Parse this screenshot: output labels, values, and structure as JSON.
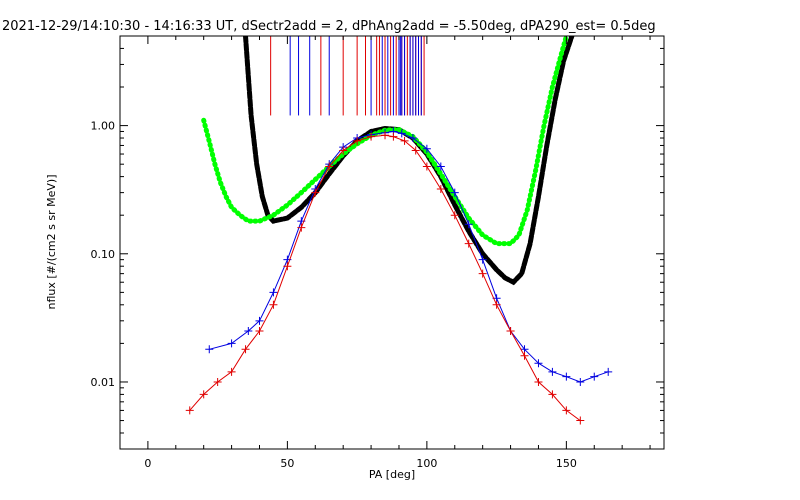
{
  "chart_data": {
    "type": "scatter",
    "title": "2021-12-29/14:10:30 - 14:16:33 UT, dSectr2add = 2, dPhAng2add = -5.50deg, dPA290_est=   0.5deg",
    "xlabel": "PA [deg]",
    "ylabel": "nflux [#/(cm2 s sr MeV)]",
    "xlim": [
      -10,
      185
    ],
    "ylim": [
      0.003,
      5
    ],
    "yscale": "log",
    "xticks": [
      0,
      50,
      100,
      150
    ],
    "xtick_labels": [
      "0",
      "50",
      "100",
      "150"
    ],
    "yticks": [
      0.01,
      0.1,
      1.0
    ],
    "ytick_labels": [
      "0.01",
      "0.10",
      "1.00"
    ],
    "grid": false,
    "colors": {
      "red": "#e00000",
      "blue": "#0000e0",
      "black": "#000000",
      "green": "#00ff00"
    },
    "series": [
      {
        "color": "black",
        "style": "thick-dashed",
        "x": [
          35,
          37,
          39,
          41,
          43,
          45,
          50,
          55,
          60,
          65,
          70,
          75,
          80,
          85,
          90,
          95,
          100,
          105,
          110,
          115,
          120,
          125,
          128,
          131,
          134,
          137,
          140,
          143,
          146,
          149,
          152
        ],
        "y": [
          5,
          1.2,
          0.5,
          0.28,
          0.2,
          0.18,
          0.19,
          0.23,
          0.3,
          0.42,
          0.58,
          0.76,
          0.9,
          0.95,
          0.93,
          0.8,
          0.6,
          0.4,
          0.24,
          0.15,
          0.1,
          0.075,
          0.065,
          0.06,
          0.07,
          0.12,
          0.28,
          0.7,
          1.6,
          3.2,
          5
        ]
      },
      {
        "color": "green",
        "style": "thick-dotted",
        "x": [
          20,
          22,
          24,
          26,
          28,
          30,
          33,
          36,
          40,
          45,
          50,
          55,
          60,
          65,
          70,
          75,
          80,
          85,
          90,
          95,
          100,
          105,
          110,
          115,
          120,
          125,
          130,
          133,
          136,
          139,
          142,
          145,
          148,
          150
        ],
        "y": [
          1.1,
          0.75,
          0.5,
          0.36,
          0.28,
          0.23,
          0.2,
          0.18,
          0.18,
          0.2,
          0.24,
          0.3,
          0.38,
          0.48,
          0.6,
          0.72,
          0.84,
          0.92,
          0.93,
          0.82,
          0.62,
          0.42,
          0.28,
          0.19,
          0.14,
          0.12,
          0.12,
          0.14,
          0.22,
          0.45,
          1.0,
          2.0,
          3.5,
          5
        ]
      },
      {
        "color": "blue",
        "style": "line+cross",
        "x": [
          22,
          30,
          36,
          40,
          45,
          50,
          55,
          60,
          65,
          70,
          75,
          80,
          85,
          88,
          91,
          95,
          100,
          105,
          110,
          115,
          120,
          125,
          130,
          135,
          140,
          145,
          150,
          155,
          160,
          165
        ],
        "y": [
          0.018,
          0.02,
          0.025,
          0.03,
          0.05,
          0.09,
          0.18,
          0.32,
          0.5,
          0.68,
          0.8,
          0.85,
          0.88,
          0.9,
          0.87,
          0.8,
          0.66,
          0.48,
          0.3,
          0.17,
          0.09,
          0.045,
          0.025,
          0.018,
          0.014,
          0.012,
          0.011,
          0.01,
          0.011,
          0.012
        ]
      },
      {
        "color": "red",
        "style": "line+cross",
        "x": [
          15,
          20,
          25,
          30,
          35,
          40,
          45,
          50,
          55,
          60,
          65,
          70,
          75,
          80,
          85,
          88,
          92,
          96,
          100,
          105,
          110,
          115,
          120,
          125,
          130,
          135,
          140,
          145,
          150,
          155
        ],
        "y": [
          0.006,
          0.008,
          0.01,
          0.012,
          0.018,
          0.025,
          0.04,
          0.08,
          0.16,
          0.3,
          0.48,
          0.64,
          0.76,
          0.82,
          0.84,
          0.82,
          0.76,
          0.64,
          0.48,
          0.32,
          0.2,
          0.12,
          0.07,
          0.04,
          0.025,
          0.016,
          0.01,
          0.008,
          0.006,
          0.005
        ]
      }
    ],
    "markers": {
      "red_x": [
        44,
        62,
        70,
        75,
        78,
        82,
        83,
        85,
        87,
        89,
        91,
        92,
        93,
        94,
        95,
        96,
        97,
        98,
        99
      ],
      "blue_x": [
        51,
        54,
        58,
        65,
        80,
        84,
        86,
        88,
        90,
        90.5,
        91,
        92,
        94,
        95,
        96,
        97,
        98
      ]
    }
  }
}
